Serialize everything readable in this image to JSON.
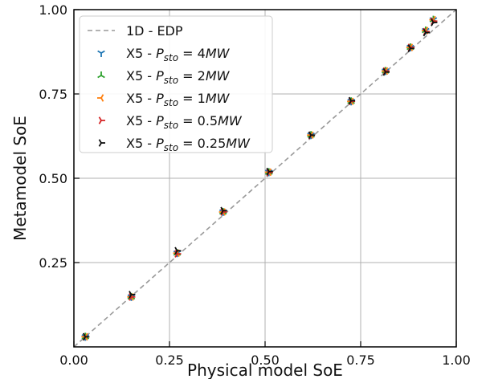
{
  "chart_data": {
    "type": "scatter",
    "xlabel": "Physical model SoE",
    "ylabel": "Metamodel SoE",
    "xlim": [
      0.0,
      1.0
    ],
    "ylim": [
      0.0,
      1.0
    ],
    "x_ticks": [
      "0.00",
      "0.25",
      "0.50",
      "0.75",
      "1.00"
    ],
    "y_ticks": [
      "0.25",
      "0.50",
      "0.75",
      "1.00"
    ],
    "grid": true,
    "legend_position": "top-left",
    "reference_line": {
      "name": "1D - EDP",
      "x": [
        0.0,
        1.0
      ],
      "y": [
        0.0,
        1.0
      ],
      "style": "dashed",
      "color": "#999999"
    },
    "series": [
      {
        "label_prefix": "X5 - ",
        "label_symbol": "P",
        "label_sub": "sto",
        "label_value": " = 4",
        "label_unit": "MW",
        "color": "#1f77b4",
        "marker": "tri_down",
        "x": [
          0.03,
          0.15,
          0.27,
          0.39,
          0.51,
          0.62,
          0.725,
          0.815,
          0.88,
          0.92,
          0.94
        ],
        "y": [
          0.03,
          0.148,
          0.278,
          0.4,
          0.518,
          0.628,
          0.728,
          0.818,
          0.888,
          0.938,
          0.97
        ]
      },
      {
        "label_prefix": "X5 - ",
        "label_symbol": "P",
        "label_sub": "sto",
        "label_value": " = 2",
        "label_unit": "MW",
        "color": "#2ca02c",
        "marker": "tri_up",
        "x": [
          0.03,
          0.15,
          0.27,
          0.39,
          0.51,
          0.62,
          0.725,
          0.815,
          0.88,
          0.92,
          0.94
        ],
        "y": [
          0.03,
          0.148,
          0.278,
          0.4,
          0.518,
          0.628,
          0.728,
          0.818,
          0.888,
          0.938,
          0.97
        ]
      },
      {
        "label_prefix": "X5 - ",
        "label_symbol": "P",
        "label_sub": "sto",
        "label_value": " = 1",
        "label_unit": "MW",
        "color": "#ff7f0e",
        "marker": "tri_left",
        "x": [
          0.03,
          0.15,
          0.27,
          0.39,
          0.51,
          0.62,
          0.725,
          0.815,
          0.88,
          0.92,
          0.94
        ],
        "y": [
          0.03,
          0.148,
          0.278,
          0.4,
          0.518,
          0.628,
          0.728,
          0.818,
          0.888,
          0.938,
          0.97
        ]
      },
      {
        "label_prefix": "X5 - ",
        "label_symbol": "P",
        "label_sub": "sto",
        "label_value": " = 0.5",
        "label_unit": "MW",
        "color": "#d62728",
        "marker": "tri_right",
        "x": [
          0.03,
          0.15,
          0.27,
          0.39,
          0.51,
          0.62,
          0.725,
          0.815,
          0.88,
          0.92,
          0.94
        ],
        "y": [
          0.03,
          0.148,
          0.276,
          0.4,
          0.517,
          0.627,
          0.728,
          0.818,
          0.888,
          0.935,
          0.966
        ]
      },
      {
        "label_prefix": "X5 - ",
        "label_symbol": "P",
        "label_sub": "sto",
        "label_value": " = 0.25",
        "label_unit": "MW",
        "color": "#111111",
        "marker": "tri_right",
        "x": [
          0.03,
          0.15,
          0.27,
          0.39,
          0.51,
          0.62,
          0.725,
          0.815,
          0.88,
          0.92,
          0.94
        ],
        "y": [
          0.03,
          0.155,
          0.285,
          0.404,
          0.52,
          0.628,
          0.73,
          0.815,
          0.885,
          0.932,
          0.962
        ]
      }
    ]
  }
}
